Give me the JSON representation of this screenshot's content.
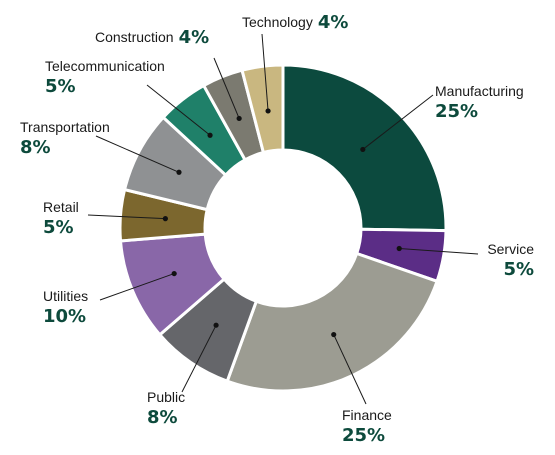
{
  "chart_data": {
    "type": "pie",
    "variant": "donut",
    "title": "",
    "slices": [
      {
        "label": "Manufacturing",
        "value": 25,
        "value_label": "25%",
        "color": "#0c4a3e"
      },
      {
        "label": "Service",
        "value": 5,
        "value_label": "5%",
        "color": "#5b2d86"
      },
      {
        "label": "Finance",
        "value": 25,
        "value_label": "25%",
        "color": "#9c9c92"
      },
      {
        "label": "Public",
        "value": 8,
        "value_label": "8%",
        "color": "#65666a"
      },
      {
        "label": "Utilities",
        "value": 10,
        "value_label": "10%",
        "color": "#8967a8"
      },
      {
        "label": "Retail",
        "value": 5,
        "value_label": "5%",
        "color": "#7c672e"
      },
      {
        "label": "Transportation",
        "value": 8,
        "value_label": "8%",
        "color": "#8f9193"
      },
      {
        "label": "Telecommunication",
        "value": 5,
        "value_label": "5%",
        "color": "#1f8069"
      },
      {
        "label": "Construction",
        "value": 4,
        "value_label": "4%",
        "color": "#7b7a70"
      },
      {
        "label": "Technology",
        "value": 4,
        "value_label": "4%",
        "color": "#c9b780"
      }
    ],
    "legend": "none",
    "labels": "outside-with-leader-lines",
    "percent_label_color": "#0d4a3c"
  }
}
